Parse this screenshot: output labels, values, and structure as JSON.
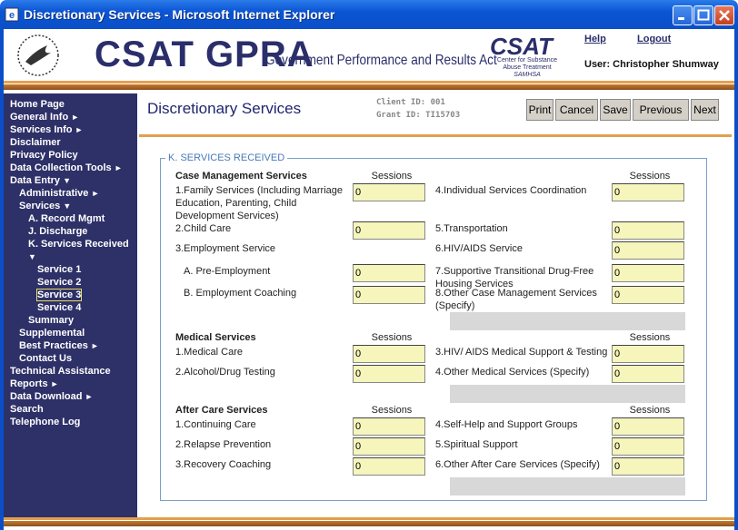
{
  "window": {
    "title": "Discretionary Services - Microsoft Internet Explorer"
  },
  "header": {
    "app_title": "CSAT GPRA",
    "subtitle": "Government Performance and Results Act",
    "logo": {
      "name": "CSAT",
      "line1": "Center for Substance",
      "line2": "Abuse Treatment",
      "line3": "SAMHSA"
    },
    "links": [
      "Help",
      "Logout"
    ],
    "user": "User: Christopher Shumway"
  },
  "nav": [
    {
      "label": "Home Page",
      "level": 0
    },
    {
      "label": "General Info",
      "level": 0,
      "arrow": "►"
    },
    {
      "label": "Services Info",
      "level": 0,
      "arrow": "►"
    },
    {
      "label": "Disclaimer",
      "level": 0
    },
    {
      "label": "Privacy Policy",
      "level": 0
    },
    {
      "label": "Data Collection Tools",
      "level": 0,
      "arrow": "►"
    },
    {
      "label": "Data Entry",
      "level": 0,
      "arrow": "▼"
    },
    {
      "label": "Administrative",
      "level": 1,
      "arrow": "►"
    },
    {
      "label": "Services",
      "level": 1,
      "arrow": "▼"
    },
    {
      "label": "A. Record Mgmt",
      "level": 2
    },
    {
      "label": "J. Discharge",
      "level": 2
    },
    {
      "label": "K. Services Received",
      "level": 2,
      "arrow": "▼"
    },
    {
      "label": "Service 1",
      "level": 3
    },
    {
      "label": "Service 2",
      "level": 3
    },
    {
      "label": "Service 3",
      "level": 3,
      "selected": true
    },
    {
      "label": "Service 4",
      "level": 3
    },
    {
      "label": "Summary",
      "level": 2
    },
    {
      "label": "Supplemental",
      "level": 1
    },
    {
      "label": "Best Practices",
      "level": 1,
      "arrow": "►"
    },
    {
      "label": "Contact Us",
      "level": 1
    },
    {
      "label": "Technical Assistance",
      "level": 0
    },
    {
      "label": "Reports",
      "level": 0,
      "arrow": "►"
    },
    {
      "label": "Data Download",
      "level": 0,
      "arrow": "►"
    },
    {
      "label": "Search",
      "level": 0
    },
    {
      "label": "Telephone Log",
      "level": 0
    }
  ],
  "main": {
    "page_title": "Discretionary Services",
    "client_id": "Client ID: 001",
    "grant_id": "Grant ID: TI15703",
    "buttons": [
      "Print",
      "Cancel",
      "Save",
      "Previous",
      "Next"
    ],
    "form": {
      "legend": "K. SERVICES RECEIVED",
      "sections": [
        {
          "title": "Case Management Services",
          "sessions_headers": [
            "Sessions",
            "Sessions"
          ],
          "left": [
            {
              "label": "1.Family Services (Including Marriage Education, Parenting, Child Development Services)",
              "value": "0"
            },
            {
              "label": "2.Child Care",
              "value": "0"
            },
            {
              "label": "3.Employment Service"
            },
            {
              "label": "A. Pre-Employment",
              "value": "0",
              "sub": true
            },
            {
              "label": "B. Employment Coaching",
              "value": "0",
              "sub": true
            }
          ],
          "right": [
            {
              "label": "4.Individual Services Coordination",
              "value": "0"
            },
            {
              "label": "5.Transportation",
              "value": "0"
            },
            {
              "label": "6.HIV/AIDS Service",
              "value": "0"
            },
            {
              "label": "7.Supportive Transitional Drug-Free Housing Services",
              "value": "0"
            },
            {
              "label": "8.Other Case Management Services (Specify)",
              "value": "0"
            }
          ]
        },
        {
          "title": "Medical Services",
          "sessions_headers": [
            "Sessions",
            "Sessions"
          ],
          "left": [
            {
              "label": "1.Medical Care",
              "value": "0"
            },
            {
              "label": "2.Alcohol/Drug Testing",
              "value": "0"
            }
          ],
          "right": [
            {
              "label": "3.HIV/ AIDS Medical Support & Testing",
              "value": "0"
            },
            {
              "label": "4.Other Medical Services (Specify)",
              "value": "0"
            }
          ]
        },
        {
          "title": "After Care Services",
          "sessions_headers": [
            "Sessions",
            "Sessions"
          ],
          "left": [
            {
              "label": "1.Continuing Care",
              "value": "0"
            },
            {
              "label": "2.Relapse Prevention",
              "value": "0"
            },
            {
              "label": "3.Recovery Coaching",
              "value": "0"
            }
          ],
          "right": [
            {
              "label": "4.Self-Help and Support Groups",
              "value": "0"
            },
            {
              "label": "5.Spiritual Support",
              "value": "0"
            },
            {
              "label": "6.Other After Care Services (Specify)",
              "value": "0"
            }
          ]
        }
      ]
    }
  }
}
